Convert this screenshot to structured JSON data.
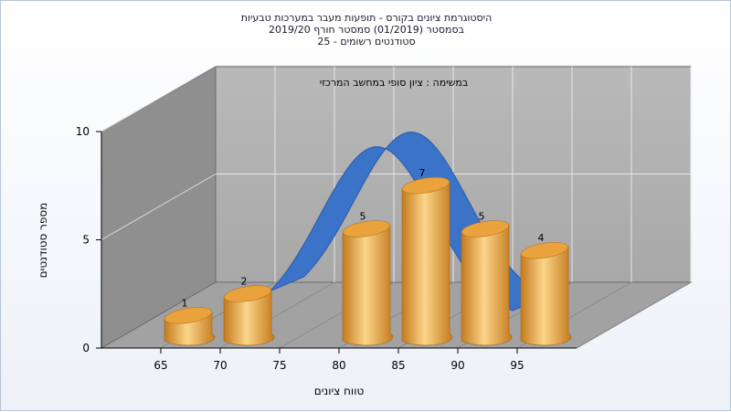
{
  "chart_data": {
    "type": "bar",
    "title_lines": [
      "היסטוגרמת ציונים בקורס - תופעות מעבר במערכות טבעיות",
      "בסמסטר  (01/2019)  סמסטר חורף 2019/20",
      "סטודנטים רשומים - 25"
    ],
    "subtitle": "במשימה : ציון סופי במחשב המרכזי",
    "xlabel": "טווח ציונים",
    "ylabel": "מספר סטודנטים",
    "categories": [
      "65",
      "70",
      "75",
      "80",
      "85",
      "90",
      "95"
    ],
    "values": [
      1,
      2,
      0,
      5,
      7,
      5,
      4
    ],
    "bar_labels": [
      "1",
      "2",
      "",
      "5",
      "7",
      "5",
      "4"
    ],
    "y_ticks": [
      "0",
      "5",
      "10"
    ],
    "ylim": [
      0,
      10
    ],
    "grid": true,
    "colors": {
      "bar_light": "#fbd58a",
      "bar_mid": "#efa94a",
      "bar_dark": "#b86e14",
      "curve": "#3a73c8",
      "back_wall": "#b4b4b4",
      "side_wall": "#8c8c8c",
      "floor": "#9e9e9e"
    }
  }
}
